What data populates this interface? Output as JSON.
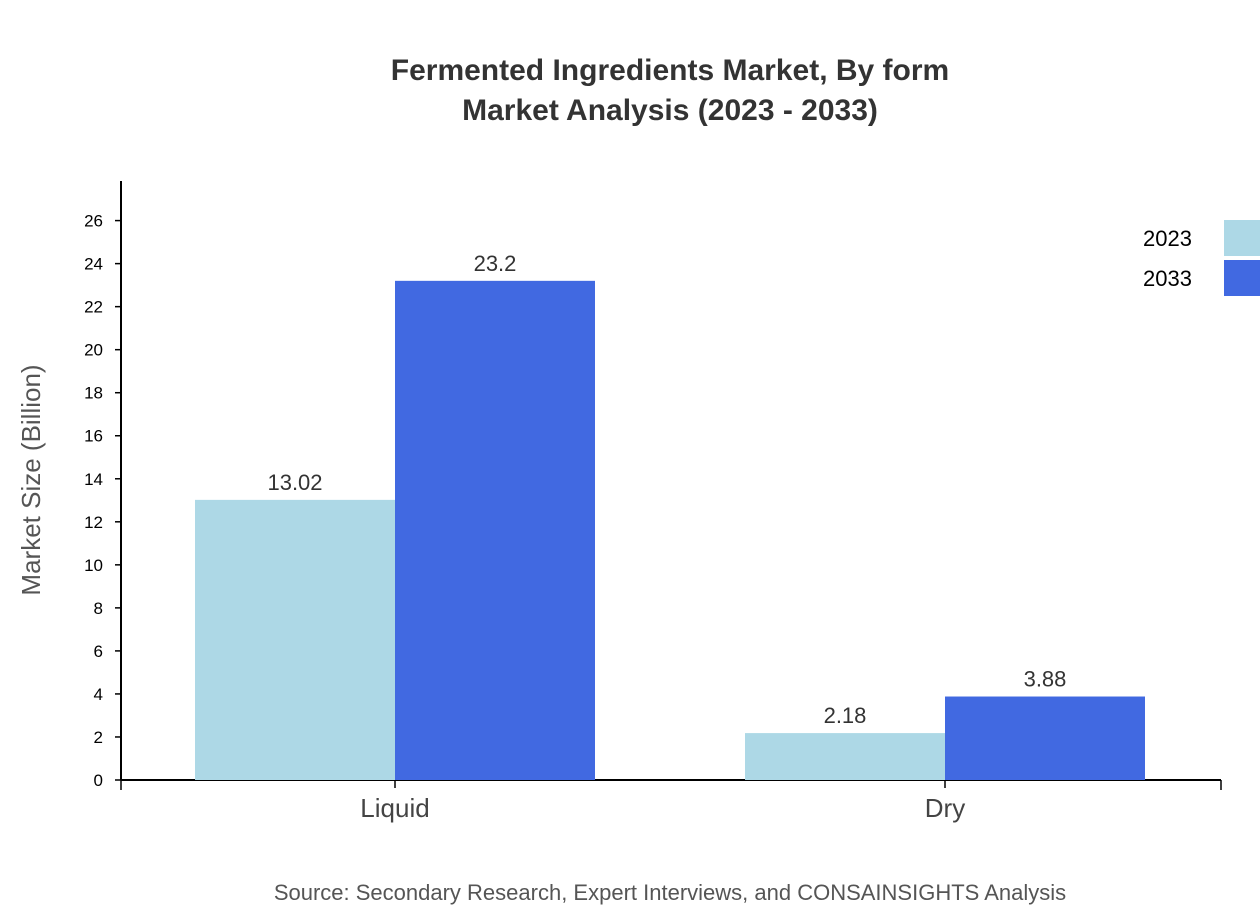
{
  "chart_data": {
    "type": "bar",
    "title": "Fermented Ingredients Market, By form",
    "subtitle": "Market Analysis (2023 - 2033)",
    "xlabel": "",
    "ylabel": "Market Size (Billion)",
    "categories": [
      "Liquid",
      "Dry"
    ],
    "series": [
      {
        "name": "2023",
        "values": [
          13.02,
          2.18
        ],
        "color": "#ADD8E6"
      },
      {
        "name": "2033",
        "values": [
          23.2,
          3.88
        ],
        "color": "#4169E1"
      }
    ],
    "ylim": [
      0,
      27.84
    ],
    "yticks": [
      0,
      2,
      4,
      6,
      8,
      10,
      12,
      14,
      16,
      18,
      20,
      22,
      24,
      26
    ],
    "grid": false,
    "legend": "top-right",
    "source": "Source: Secondary Research, Expert Interviews, and CONSAINSIGHTS Analysis"
  }
}
